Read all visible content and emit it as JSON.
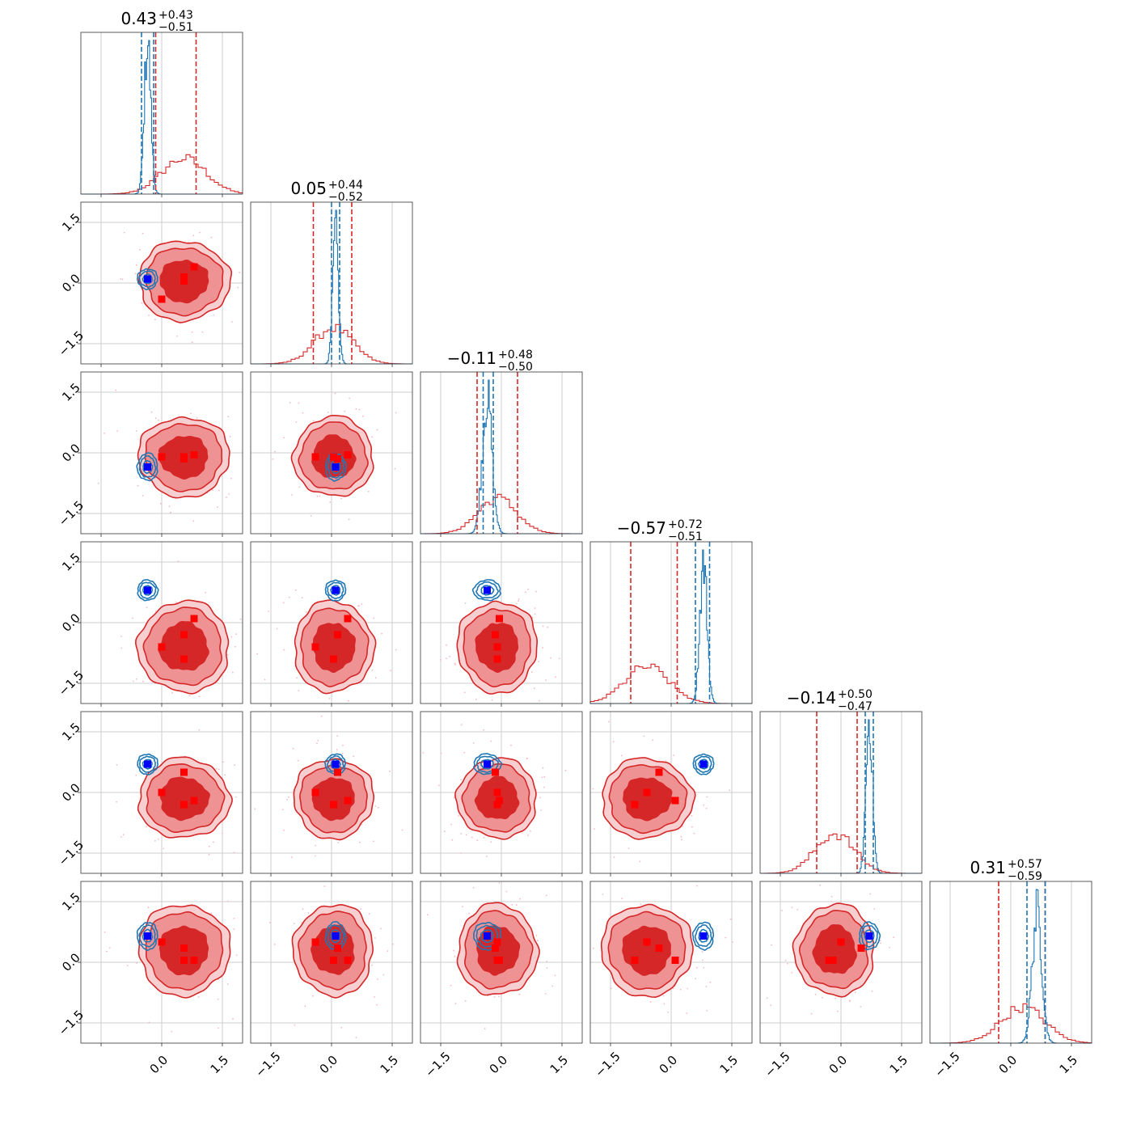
{
  "chart_data": {
    "type": "corner",
    "n_params": 6,
    "axis_range": [
      -2.0,
      2.0
    ],
    "ticks": [
      -1.5,
      0.0,
      1.5
    ],
    "tick_labels": [
      "−1.5",
      "0.0",
      "1.5"
    ],
    "grid": true,
    "colors": {
      "wide": "#d62728",
      "narrow": "#1f77b4",
      "wide_marker": "#ff0000",
      "narrow_marker": "#0000ff",
      "scatter": "#f5b8c4"
    },
    "titles": [
      {
        "center": "0.43",
        "plus": "+0.43",
        "minus": "−0.51"
      },
      {
        "center": "0.05",
        "plus": "+0.44",
        "minus": "−0.52"
      },
      {
        "center": "−0.11",
        "plus": "+0.48",
        "minus": "−0.50"
      },
      {
        "center": "−0.57",
        "plus": "+0.72",
        "minus": "−0.51"
      },
      {
        "center": "−0.14",
        "plus": "+0.50",
        "minus": "−0.47"
      },
      {
        "center": "0.31",
        "plus": "+0.57",
        "minus": "−0.59"
      }
    ],
    "series": [
      {
        "name": "",
        "color": "#d62728",
        "means": [
          0.55,
          0.05,
          -0.1,
          -0.6,
          -0.15,
          0.3
        ],
        "sds": [
          0.55,
          0.48,
          0.48,
          0.55,
          0.48,
          0.55
        ],
        "quantile_lines": [
          [
            -0.15,
            0.85
          ],
          [
            -0.45,
            0.5
          ],
          [
            -0.6,
            0.4
          ],
          [
            -1.0,
            0.15
          ],
          [
            -0.6,
            0.4
          ],
          [
            -0.3,
            0.85
          ]
        ],
        "markers": [
          [
            0.55,
            0.05,
            -0.1,
            -0.9,
            -0.3,
            0.05
          ],
          [
            0.8,
            0.4,
            -0.05,
            0.1,
            -0.2,
            0.05
          ],
          [
            0.55,
            0.15,
            -0.15,
            -0.3,
            0.5,
            0.35
          ],
          [
            0.0,
            -0.4,
            -0.1,
            -0.6,
            0.0,
            0.5
          ]
        ]
      },
      {
        "name": "",
        "color": "#1f77b4",
        "means": [
          -0.35,
          0.1,
          -0.35,
          0.8,
          0.7,
          0.65
        ],
        "sds": [
          0.08,
          0.07,
          0.12,
          0.09,
          0.08,
          0.12
        ],
        "quantile_lines": [
          [
            -0.5,
            -0.2
          ],
          [
            0.0,
            0.2
          ],
          [
            -0.45,
            -0.2
          ],
          [
            0.6,
            0.95
          ],
          [
            0.6,
            0.8
          ],
          [
            0.4,
            0.85
          ]
        ],
        "markers": [
          [
            -0.35,
            0.1,
            -0.35,
            0.8,
            0.7,
            0.65
          ]
        ]
      }
    ]
  }
}
